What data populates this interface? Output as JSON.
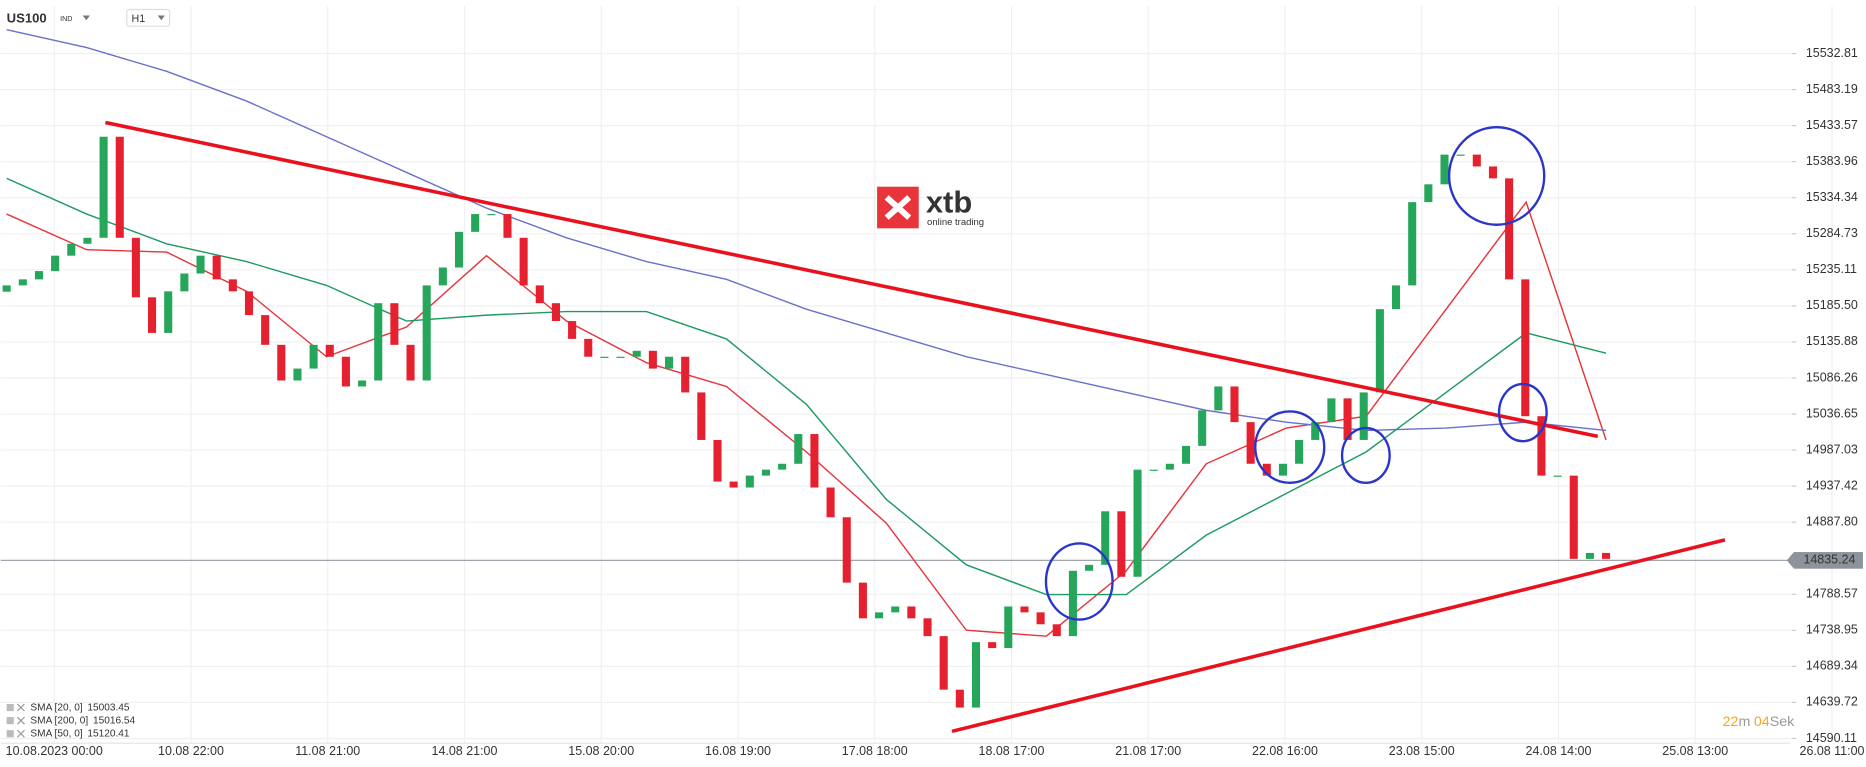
{
  "header": {
    "symbol": "US100",
    "symbol_type": "IND",
    "timeframe": "H1"
  },
  "logo": {
    "name": "xtb",
    "tagline": "online trading"
  },
  "chart_data": {
    "type": "candlestick",
    "up_color": "#26a65b",
    "down_color": "#e5212f",
    "open": [
      15205.0,
      15213.7,
      15222.0,
      15233.4,
      15254.6,
      15271.0,
      15279.2,
      15418.3,
      15279.2,
      15197.3,
      15148.3,
      15205.5,
      15230.1,
      15254.6,
      15222.0,
      15205.5,
      15172.8,
      15131.9,
      15082.8,
      15099.2,
      15131.9,
      15115.5,
      15074.6,
      15082.8,
      15189.2,
      15131.9,
      15082.8,
      15213.7,
      15238.3,
      15287.4,
      15311.9,
      15311.9,
      15279.2,
      15213.7,
      15189.2,
      15164.6,
      15140.1,
      15115.5,
      15115.5,
      15115.5,
      15123.7,
      15099.2,
      15115.5,
      15066.4,
      15001.0,
      14943.7,
      14935.5,
      14951.9,
      14960.1,
      14968.2,
      15009.1,
      14935.5,
      14894.6,
      14804.6,
      14755.5,
      14763.7,
      14771.8,
      14755.5,
      14731.0,
      14657.3,
      14632.7,
      14722.7,
      14714.5,
      14771.8,
      14763.7,
      14747.3,
      14731.0,
      14820.9,
      14829.1,
      14902.8,
      14812.7,
      14960.1,
      14960.1,
      14968.2,
      14992.8,
      15041.7,
      15074.6,
      15025.5,
      14968.2,
      14951.9,
      14968.2,
      15001.0,
      15025.5,
      15058.2,
      15001.0,
      15066.4,
      15181.0,
      15213.7,
      15328.3,
      15352.8,
      15393.7,
      15393.7,
      15377.4,
      15361.0,
      15222.0,
      15033.7,
      14951.9,
      14951.9,
      14837.3,
      14845.5
    ],
    "close": [
      15213.7,
      15222.0,
      15233.4,
      15254.6,
      15271.0,
      15279.2,
      15418.3,
      15279.2,
      15197.3,
      15148.3,
      15205.5,
      15230.1,
      15254.6,
      15222.0,
      15205.5,
      15172.8,
      15131.9,
      15082.8,
      15099.2,
      15131.9,
      15115.5,
      15074.6,
      15082.8,
      15189.2,
      15131.9,
      15082.8,
      15213.7,
      15238.3,
      15287.4,
      15311.9,
      15311.9,
      15279.2,
      15213.7,
      15189.2,
      15164.6,
      15140.1,
      15115.5,
      15115.5,
      15115.5,
      15123.7,
      15099.2,
      15115.5,
      15066.4,
      15001.0,
      14943.7,
      14935.5,
      14951.9,
      14960.1,
      14968.2,
      15009.1,
      14935.5,
      14894.6,
      14804.6,
      14755.5,
      14763.7,
      14771.8,
      14755.5,
      14731.0,
      14657.3,
      14632.7,
      14722.7,
      14714.5,
      14771.8,
      14763.7,
      14747.3,
      14731.0,
      14820.9,
      14829.1,
      14902.8,
      14812.7,
      14960.1,
      14960.1,
      14968.2,
      14992.8,
      15041.7,
      15074.6,
      15025.5,
      14968.2,
      14951.9,
      14968.2,
      15001.0,
      15025.5,
      15058.2,
      15001.0,
      15066.4,
      15181.0,
      15213.7,
      15328.3,
      15352.8,
      15393.7,
      15393.7,
      15377.4,
      15361.0,
      15222.0,
      15033.7,
      14951.9,
      14951.9,
      14837.3,
      14845.5,
      14837.3
    ],
    "ylim": [
      14583.6,
      15598.3
    ],
    "yticks": [
      15532.81,
      15483.19,
      15433.57,
      15383.96,
      15334.34,
      15284.73,
      15235.11,
      {
        "value": 15185.5,
        "label": "15185.50"
      },
      15135.88,
      15086.26,
      15036.65,
      14987.03,
      14937.42,
      {
        "value": 14887.8,
        "label": "14887.80"
      },
      14788.57,
      14738.95,
      14689.34,
      14639.72,
      14590.11
    ],
    "x_labels": [
      "10.08.2023 00:00",
      "10.08 22:00",
      "11.08 21:00",
      "14.08 21:00",
      "15.08 20:00",
      "16.08 19:00",
      "17.08 18:00",
      "18.08 17:00",
      "21.08 17:00",
      "22.08 16:00",
      "23.08 15:00",
      "24.08 14:00",
      "25.08 13:00",
      "26.08 11:00"
    ],
    "grid": true,
    "current_price": 14835.24,
    "indicators": [
      {
        "name": "SMA [20, 0]",
        "color": "#e8343a",
        "last": 15003.45,
        "values": [
          15311.9,
          15262.8,
          15259.5,
          15205.5,
          15115.5,
          15156.4,
          15254.6,
          15164.6,
          15107.3,
          15074.6,
          14984.6,
          14886.4,
          14739.1,
          14730.9,
          14820.9,
          14968.2,
          15017.3,
          15033.7,
          15181.0,
          15328.3,
          15001.0
        ]
      },
      {
        "name": "SMA [200, 0]",
        "color": "#6b72c9",
        "last": 15016.54,
        "values": [
          15565.6,
          15541.0,
          15508.3,
          15467.4,
          15418.3,
          15369.2,
          15320.1,
          15279.2,
          15246.4,
          15222.0,
          15181.0,
          15148.3,
          15115.5,
          15091.0,
          15066.4,
          15041.7,
          15025.5,
          15014.1,
          15017.3,
          15025.5,
          15014.1
        ]
      },
      {
        "name": "SMA [50, 0]",
        "color": "#1e9b62",
        "last": 15120.41,
        "values": [
          15361.0,
          15311.9,
          15271.0,
          15246.4,
          15213.7,
          15164.6,
          15172.8,
          15177.7,
          15177.7,
          15140.1,
          15050.1,
          14919.1,
          14829.1,
          14788.2,
          14788.2,
          14870.0,
          14927.3,
          14984.6,
          15066.4,
          15148.3,
          15120.4
        ]
      }
    ]
  },
  "timer": {
    "minutes": "22",
    "minutes_unit": "m",
    "seconds": "04",
    "seconds_unit": "Sek"
  }
}
